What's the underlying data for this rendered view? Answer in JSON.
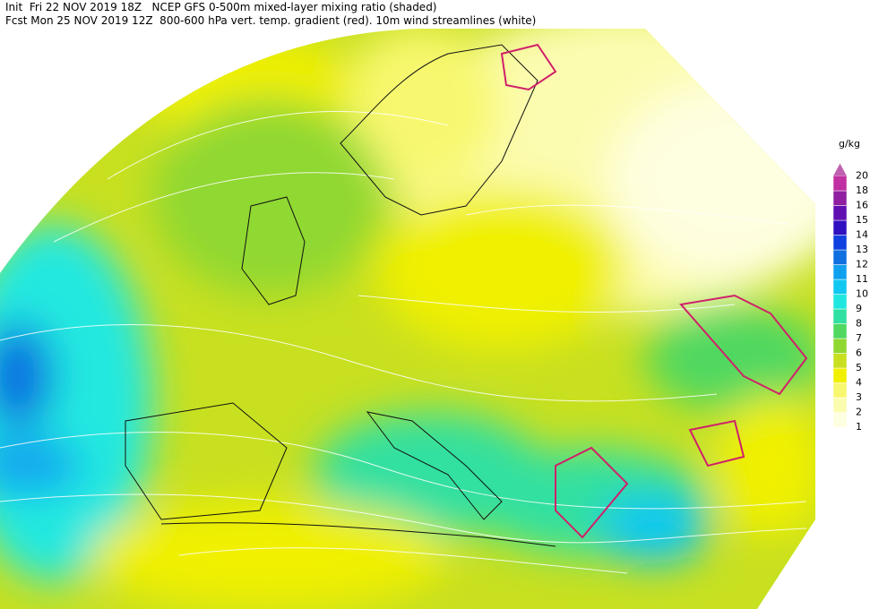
{
  "header": {
    "line1": "Init  Fri 22 NOV 2019 18Z   NCEP GFS 0-500m mixed-layer mixing ratio (shaded)",
    "line2": "Fcst Mon 25 NOV 2019 12Z  800-600 hPa vert. temp. gradient (red). 10m wind streamlines (white)"
  },
  "legend": {
    "unit": "g/kg",
    "levels": [
      {
        "label": 1,
        "color": "#fefee0"
      },
      {
        "label": 2,
        "color": "#fcfcb0"
      },
      {
        "label": 3,
        "color": "#f8f870"
      },
      {
        "label": 4,
        "color": "#f0f000"
      },
      {
        "label": 5,
        "color": "#c8e020"
      },
      {
        "label": 6,
        "color": "#90d830"
      },
      {
        "label": 7,
        "color": "#50d860"
      },
      {
        "label": 8,
        "color": "#30e0a0"
      },
      {
        "label": 9,
        "color": "#20e8e0"
      },
      {
        "label": 10,
        "color": "#10c8f0"
      },
      {
        "label": 11,
        "color": "#10a0f0"
      },
      {
        "label": 12,
        "color": "#1070e0"
      },
      {
        "label": 13,
        "color": "#1040e0"
      },
      {
        "label": 14,
        "color": "#3010c0"
      },
      {
        "label": 15,
        "color": "#6010b0"
      },
      {
        "label": 16,
        "color": "#9020a0"
      },
      {
        "label": 18,
        "color": "#c030a0"
      },
      {
        "label": 20,
        "color": "#c060b0"
      }
    ]
  }
}
